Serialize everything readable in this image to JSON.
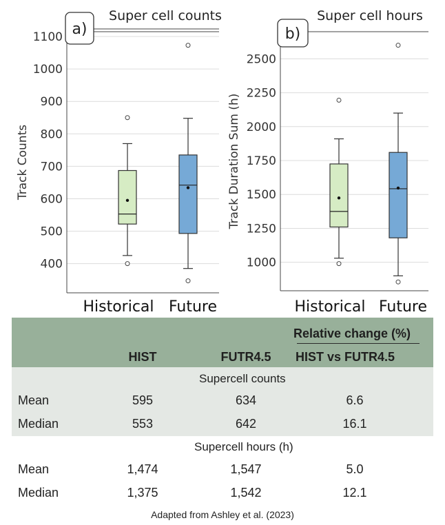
{
  "chart_data": [
    {
      "type": "box",
      "panel_label": "a)",
      "title": "Super cell counts",
      "ylabel": "Track Counts",
      "xlabel": "",
      "categories": [
        "Historical",
        "Future"
      ],
      "yticks": [
        400,
        500,
        600,
        700,
        800,
        900,
        1000,
        1100
      ],
      "ylim": [
        310,
        1115
      ],
      "grid": true,
      "boxes": [
        {
          "category": "Historical",
          "color": "#d6ecc4",
          "whisker_low": 425,
          "q1": 522,
          "median": 553,
          "q3": 687,
          "whisker_high": 770,
          "mean": 595,
          "outliers": [
            400,
            850
          ]
        },
        {
          "category": "Future",
          "color": "#76a9d6",
          "whisker_low": 385,
          "q1": 493,
          "median": 642,
          "q3": 735,
          "whisker_high": 848,
          "mean": 634,
          "outliers": [
            347,
            1073
          ]
        }
      ]
    },
    {
      "type": "box",
      "panel_label": "b)",
      "title": "Super cell hours",
      "ylabel": "Track Duration Sum (h)",
      "xlabel": "",
      "categories": [
        "Historical",
        "Future"
      ],
      "yticks": [
        1000,
        1250,
        1500,
        1750,
        2000,
        2250,
        2500
      ],
      "ylim": [
        790,
        2700
      ],
      "grid": true,
      "boxes": [
        {
          "category": "Historical",
          "color": "#d6ecc4",
          "whisker_low": 1030,
          "q1": 1260,
          "median": 1375,
          "q3": 1725,
          "whisker_high": 1910,
          "mean": 1474,
          "outliers": [
            990,
            2195
          ]
        },
        {
          "category": "Future",
          "color": "#76a9d6",
          "whisker_low": 900,
          "q1": 1180,
          "median": 1542,
          "q3": 1810,
          "whisker_high": 2100,
          "mean": 1547,
          "outliers": [
            855,
            2600
          ]
        }
      ]
    }
  ],
  "table": {
    "header": {
      "hist": "HIST",
      "futr": "FUTR4.5",
      "relative_top": "Relative change (%)",
      "relative_bottom": "HIST vs FUTR4.5"
    },
    "sections": [
      {
        "title": "Supercell counts",
        "rows": [
          {
            "label": "Mean",
            "hist": "595",
            "futr": "634",
            "rel": "6.6"
          },
          {
            "label": "Median",
            "hist": "553",
            "futr": "642",
            "rel": "16.1"
          }
        ]
      },
      {
        "title": "Supercell hours (h)",
        "rows": [
          {
            "label": "Mean",
            "hist": "1,474",
            "futr": "1,547",
            "rel": "5.0"
          },
          {
            "label": "Median",
            "hist": "1,375",
            "futr": "1,542",
            "rel": "12.1"
          }
        ]
      }
    ],
    "colors": {
      "header_bg": "#98b09a",
      "band_bg": "#e4e8e4"
    }
  },
  "caption": "Adapted from Ashley et al. (2023)"
}
